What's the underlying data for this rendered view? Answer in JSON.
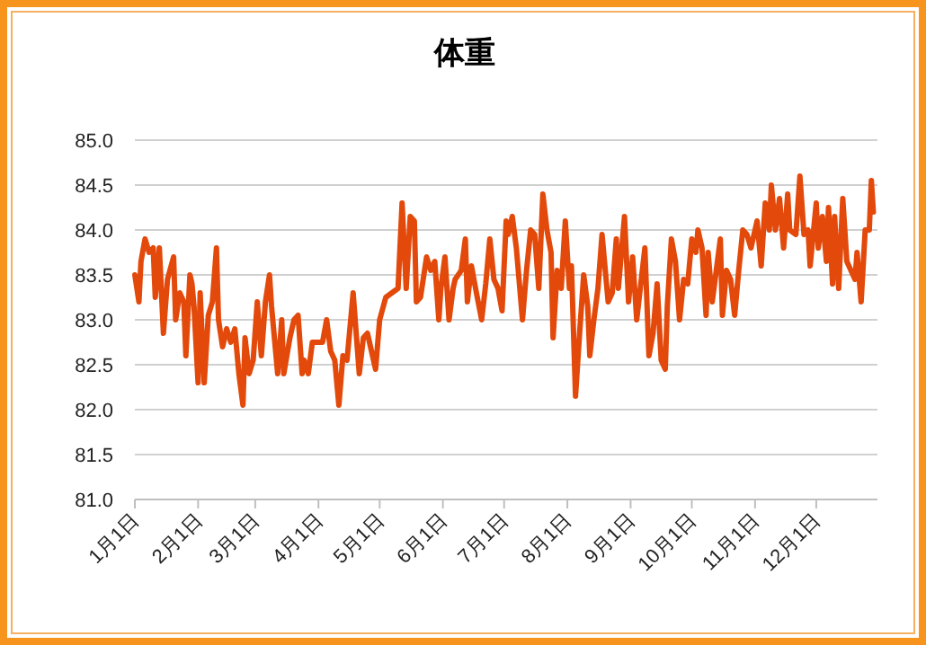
{
  "chart_data": {
    "type": "line",
    "title": "体重",
    "x": [
      "--01-01",
      "--01-03",
      "--01-04",
      "--01-06",
      "--01-08",
      "--01-10",
      "--01-11",
      "--01-13",
      "--01-15",
      "--01-17",
      "--01-20",
      "--01-21",
      "--01-23",
      "--01-25",
      "--01-26",
      "--01-28",
      "--01-29",
      "--01-30",
      "--02-01",
      "--02-02",
      "--02-04",
      "--02-06",
      "--02-08",
      "--02-10",
      "--02-11",
      "--02-13",
      "--02-15",
      "--02-17",
      "--02-19",
      "--02-21",
      "--02-23",
      "--02-24",
      "--02-26",
      "--02-28",
      "--03-02",
      "--03-04",
      "--03-06",
      "--03-08",
      "--03-09",
      "--03-12",
      "--03-14",
      "--03-15",
      "--03-18",
      "--03-20",
      "--03-22",
      "--03-24",
      "--03-25",
      "--03-27",
      "--03-29",
      "--03-31",
      "--04-03",
      "--04-05",
      "--04-07",
      "--04-09",
      "--04-11",
      "--04-13",
      "--04-15",
      "--04-18",
      "--04-21",
      "--04-23",
      "--04-25",
      "--04-27",
      "--04-29",
      "--05-01",
      "--05-04",
      "--05-07",
      "--05-10",
      "--05-12",
      "--05-14",
      "--05-16",
      "--05-18",
      "--05-19",
      "--05-21",
      "--05-24",
      "--05-26",
      "--05-28",
      "--05-30",
      "--05-31",
      "--06-02",
      "--06-04",
      "--06-06",
      "--06-07",
      "--06-10",
      "--06-12",
      "--06-13",
      "--06-15",
      "--06-17",
      "--06-20",
      "--06-22",
      "--06-24",
      "--06-26",
      "--06-28",
      "--06-30",
      "--07-02",
      "--07-03",
      "--07-05",
      "--07-07",
      "--07-10",
      "--07-12",
      "--07-14",
      "--07-16",
      "--07-18",
      "--07-20",
      "--07-22",
      "--07-24",
      "--07-25",
      "--07-27",
      "--07-29",
      "--07-31",
      "--08-02",
      "--08-03",
      "--08-05",
      "--08-07",
      "--08-09",
      "--08-11",
      "--08-12",
      "--08-14",
      "--08-16",
      "--08-18",
      "--08-21",
      "--08-23",
      "--08-25",
      "--08-26",
      "--08-29",
      "--08-31",
      "--09-02",
      "--09-04",
      "--09-06",
      "--09-08",
      "--09-10",
      "--09-12",
      "--09-14",
      "--09-16",
      "--09-18",
      "--09-19",
      "--09-21",
      "--09-23",
      "--09-25",
      "--09-27",
      "--09-29",
      "--10-01",
      "--10-03",
      "--10-04",
      "--10-06",
      "--10-08",
      "--10-09",
      "--10-11",
      "--10-13",
      "--10-15",
      "--10-16",
      "--10-18",
      "--10-20",
      "--10-22",
      "--10-24",
      "--10-26",
      "--10-28",
      "--10-30",
      "--11-02",
      "--11-04",
      "--11-06",
      "--11-08",
      "--11-09",
      "--11-11",
      "--11-13",
      "--11-15",
      "--11-17",
      "--11-18",
      "--11-21",
      "--11-23",
      "--11-25",
      "--11-27",
      "--11-28",
      "--12-01",
      "--12-02",
      "--12-04",
      "--12-06",
      "--12-07",
      "--12-09",
      "--12-10",
      "--12-12",
      "--12-14",
      "--12-16",
      "--12-18",
      "--12-20",
      "--12-21",
      "--12-23",
      "--12-25",
      "--12-27",
      "--12-28",
      "--12-29"
    ],
    "series": [
      {
        "color": "#e2490a",
        "values": [
          83.5,
          83.2,
          83.65,
          83.9,
          83.75,
          83.8,
          83.25,
          83.8,
          82.85,
          83.45,
          83.7,
          83.0,
          83.3,
          83.2,
          82.6,
          83.5,
          83.4,
          83.15,
          82.3,
          83.3,
          82.3,
          83.05,
          83.2,
          83.8,
          83.0,
          82.7,
          82.9,
          82.75,
          82.9,
          82.4,
          82.05,
          82.8,
          82.4,
          82.55,
          83.2,
          82.6,
          83.2,
          83.5,
          83.15,
          82.4,
          83.0,
          82.4,
          82.8,
          83.0,
          83.05,
          82.4,
          82.55,
          82.4,
          82.75,
          82.75,
          82.75,
          83.0,
          82.65,
          82.55,
          82.05,
          82.6,
          82.55,
          83.3,
          82.4,
          82.8,
          82.85,
          82.65,
          82.45,
          83.0,
          83.25,
          83.3,
          83.35,
          84.3,
          83.35,
          84.15,
          84.1,
          83.2,
          83.25,
          83.7,
          83.55,
          83.65,
          83.0,
          83.35,
          83.7,
          83.0,
          83.35,
          83.45,
          83.55,
          83.9,
          83.2,
          83.6,
          83.35,
          83.0,
          83.4,
          83.9,
          83.45,
          83.35,
          83.1,
          84.1,
          83.95,
          84.15,
          83.8,
          83.0,
          83.55,
          84.0,
          83.95,
          83.35,
          84.4,
          84.0,
          83.75,
          82.8,
          83.55,
          83.35,
          84.1,
          83.35,
          83.6,
          82.15,
          82.85,
          83.5,
          83.15,
          82.6,
          83.0,
          83.35,
          83.95,
          83.2,
          83.3,
          83.9,
          83.35,
          84.15,
          83.2,
          83.7,
          83.0,
          83.4,
          83.8,
          82.6,
          82.85,
          83.4,
          82.55,
          82.45,
          83.15,
          83.9,
          83.65,
          83.0,
          83.45,
          83.4,
          83.9,
          83.75,
          84.0,
          83.8,
          83.05,
          83.75,
          83.2,
          83.55,
          83.9,
          83.05,
          83.55,
          83.45,
          83.05,
          83.55,
          84.0,
          83.95,
          83.8,
          84.1,
          83.6,
          84.3,
          84.0,
          84.5,
          84.0,
          84.35,
          83.8,
          84.4,
          84.0,
          83.95,
          84.6,
          83.95,
          84.0,
          83.6,
          84.3,
          83.8,
          84.15,
          83.65,
          84.25,
          83.4,
          84.15,
          83.35,
          84.35,
          83.65,
          83.55,
          83.45,
          83.75,
          83.2,
          84.0,
          84.0,
          84.55,
          84.2
        ]
      }
    ],
    "xlim": [
      "--01-01",
      "--12-31"
    ],
    "xticks": [
      {
        "value": "--01-01",
        "label": "1月1日"
      },
      {
        "value": "--02-01",
        "label": "2月1日"
      },
      {
        "value": "--03-01",
        "label": "3月1日"
      },
      {
        "value": "--04-01",
        "label": "4月1日"
      },
      {
        "value": "--05-01",
        "label": "5月1日"
      },
      {
        "value": "--06-01",
        "label": "6月1日"
      },
      {
        "value": "--07-01",
        "label": "7月1日"
      },
      {
        "value": "--08-01",
        "label": "8月1日"
      },
      {
        "value": "--09-01",
        "label": "9月1日"
      },
      {
        "value": "--10-01",
        "label": "10月1日"
      },
      {
        "value": "--11-01",
        "label": "11月1日"
      },
      {
        "value": "--12-01",
        "label": "12月1日"
      }
    ],
    "ylim": [
      81,
      85
    ],
    "yticks": [
      {
        "value": 81,
        "label": "81.0"
      },
      {
        "value": 81.5,
        "label": "81.5"
      },
      {
        "value": 82,
        "label": "82.0"
      },
      {
        "value": 82.5,
        "label": "82.5"
      },
      {
        "value": 83,
        "label": "83.0"
      },
      {
        "value": 83.5,
        "label": "83.5"
      },
      {
        "value": 84,
        "label": "84.0"
      },
      {
        "value": 84.5,
        "label": "84.5"
      },
      {
        "value": 85,
        "label": "85.0"
      }
    ],
    "grid": "y",
    "marker": "none",
    "line_style": "solid"
  }
}
